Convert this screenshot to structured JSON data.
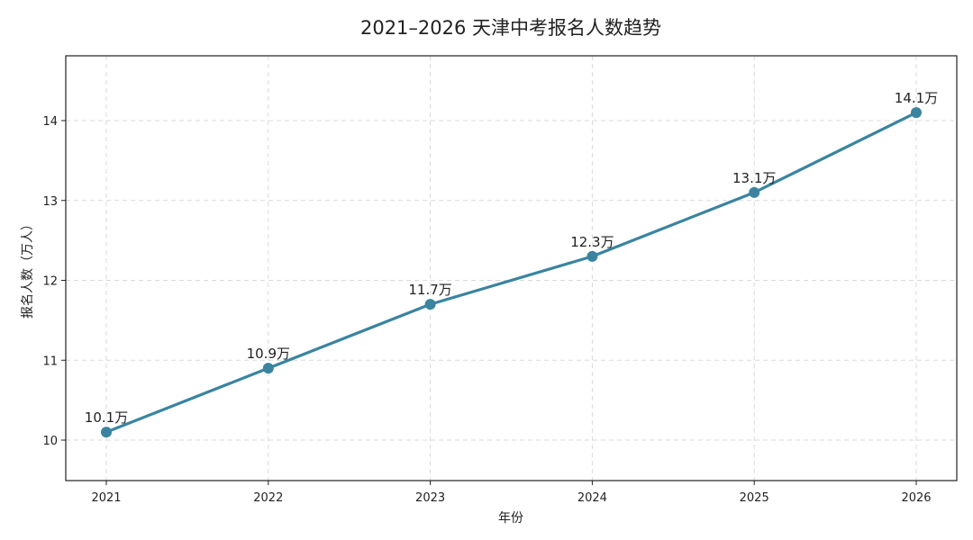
{
  "chart_data": {
    "type": "line",
    "title": "2021–2026 天津中考报名人数趋势",
    "xlabel": "年份",
    "ylabel": "报名人数（万人）",
    "categories": [
      "2021",
      "2022",
      "2023",
      "2024",
      "2025",
      "2026"
    ],
    "values": [
      10.1,
      10.9,
      11.7,
      12.3,
      13.1,
      14.1
    ],
    "data_labels": [
      "10.1万",
      "10.9万",
      "11.7万",
      "12.3万",
      "13.1万",
      "14.1万"
    ],
    "yticks": [
      "10",
      "11",
      "12",
      "13",
      "14"
    ],
    "ylim": [
      9.5,
      14.8
    ],
    "grid": true,
    "line_color": "#3a84a0",
    "marker": "circle"
  }
}
